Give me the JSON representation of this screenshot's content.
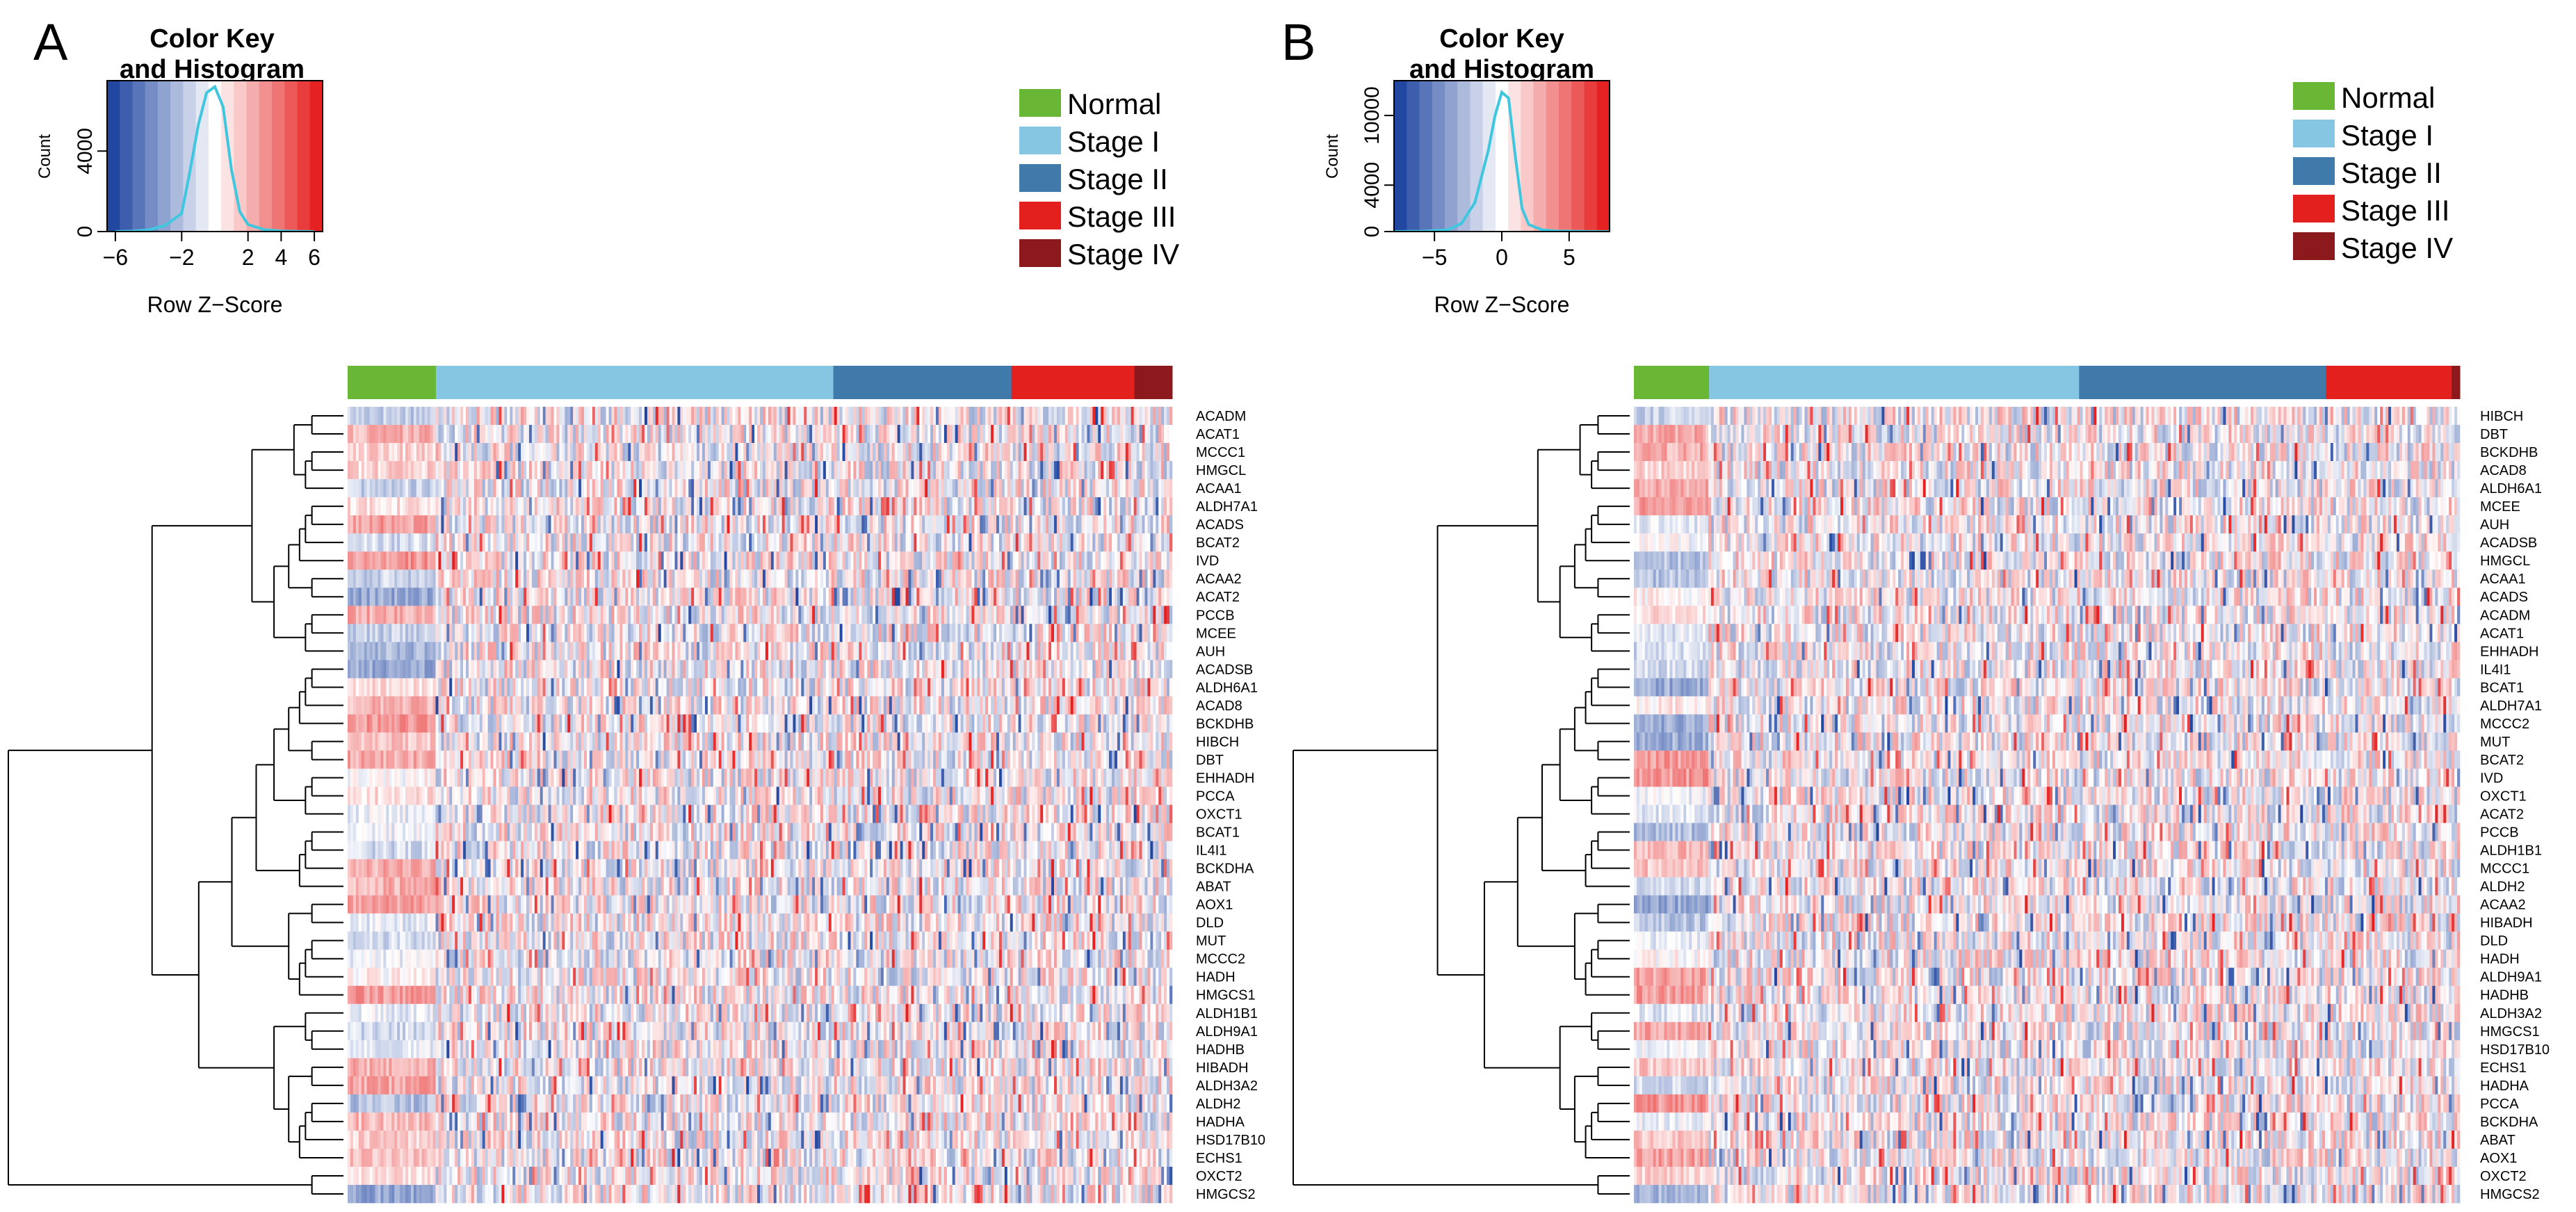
{
  "colors": {
    "normal": "#6ab635",
    "stage_i": "#86c6e2",
    "stage_ii": "#3f7aab",
    "stage_iii": "#e4201f",
    "stage_iv": "#8c1a1c",
    "low": "#1f45a0",
    "mid": "#ffffff",
    "high": "#e51f1f",
    "histogram": "#3fc7e0"
  },
  "legend": [
    {
      "label": "Normal",
      "color_key": "normal"
    },
    {
      "label": "Stage I",
      "color_key": "stage_i"
    },
    {
      "label": "Stage II",
      "color_key": "stage_ii"
    },
    {
      "label": "Stage III",
      "color_key": "stage_iii"
    },
    {
      "label": "Stage IV",
      "color_key": "stage_iv"
    }
  ],
  "chart_data": [
    {
      "type": "heatmap",
      "panel_label": "A",
      "color_key": {
        "title_line1": "Color Key",
        "title_line2": "and Histogram",
        "xlabel": "Row Z−Score",
        "ylabel": "Count",
        "xlim": [
          -6.5,
          6.5
        ],
        "x_ticks": [
          "−6",
          "−2",
          "2",
          "4",
          "6"
        ],
        "x_tick_values": [
          -6,
          -2,
          2,
          4,
          6
        ],
        "y_ticks": [
          "0",
          "4000"
        ],
        "y_tick_values": [
          0,
          4000
        ],
        "ylim": [
          0,
          7500
        ],
        "histogram": {
          "x": [
            -6,
            -5,
            -4,
            -3,
            -2,
            -1.5,
            -1,
            -0.5,
            0,
            0.5,
            1,
            1.5,
            2,
            3,
            4,
            5,
            6
          ],
          "counts": [
            0,
            20,
            80,
            300,
            900,
            3000,
            5300,
            6900,
            7200,
            6200,
            3100,
            1000,
            350,
            90,
            30,
            10,
            0
          ]
        }
      },
      "group_fractions": [
        {
          "group": "normal",
          "fraction": 0.107
        },
        {
          "group": "stage_i",
          "fraction": 0.482
        },
        {
          "group": "stage_ii",
          "fraction": 0.216
        },
        {
          "group": "stage_iii",
          "fraction": 0.149
        },
        {
          "group": "stage_iv",
          "fraction": 0.046
        }
      ],
      "rows": [
        "ACADM",
        "ACAT1",
        "MCCC1",
        "HMGCL",
        "ACAA1",
        "ALDH7A1",
        "ACADS",
        "BCAT2",
        "IVD",
        "ACAA2",
        "ACAT2",
        "PCCB",
        "MCEE",
        "AUH",
        "ACADSB",
        "ALDH6A1",
        "ACAD8",
        "BCKDHB",
        "HIBCH",
        "DBT",
        "EHHADH",
        "PCCA",
        "OXCT1",
        "BCAT1",
        "IL4I1",
        "BCKDHA",
        "ABAT",
        "AOX1",
        "DLD",
        "MUT",
        "MCCC2",
        "HADH",
        "HMGCS1",
        "ALDH1B1",
        "ALDH9A1",
        "HADHB",
        "HIBADH",
        "ALDH3A2",
        "ALDH2",
        "HADHA",
        "HSD17B10",
        "ECHS1",
        "OXCT2",
        "HMGCS2"
      ]
    },
    {
      "type": "heatmap",
      "panel_label": "B",
      "color_key": {
        "title_line1": "Color Key",
        "title_line2": "and Histogram",
        "xlabel": "Row Z−Score",
        "ylabel": "Count",
        "xlim": [
          -8,
          8
        ],
        "x_ticks": [
          "−5",
          "0",
          "5"
        ],
        "x_tick_values": [
          -5,
          0,
          5
        ],
        "y_ticks": [
          "0",
          "4000",
          "10000"
        ],
        "y_tick_values": [
          0,
          4000,
          10000
        ],
        "ylim": [
          0,
          13000
        ],
        "histogram": {
          "x": [
            -8,
            -6,
            -4,
            -3,
            -2,
            -1,
            -0.5,
            0,
            0.5,
            1,
            1.5,
            2,
            3,
            4,
            6,
            8
          ],
          "counts": [
            0,
            20,
            150,
            700,
            2500,
            7000,
            10000,
            12000,
            11500,
            6500,
            2000,
            600,
            150,
            40,
            10,
            0
          ]
        }
      },
      "group_fractions": [
        {
          "group": "normal",
          "fraction": 0.091
        },
        {
          "group": "stage_i",
          "fraction": 0.448
        },
        {
          "group": "stage_ii",
          "fraction": 0.299
        },
        {
          "group": "stage_iii",
          "fraction": 0.152
        },
        {
          "group": "stage_iv",
          "fraction": 0.01
        }
      ],
      "rows": [
        "HIBCH",
        "DBT",
        "BCKDHB",
        "ACAD8",
        "ALDH6A1",
        "MCEE",
        "AUH",
        "ACADSB",
        "HMGCL",
        "ACAA1",
        "ACADS",
        "ACADM",
        "ACAT1",
        "EHHADH",
        "IL4I1",
        "BCAT1",
        "ALDH7A1",
        "MCCC2",
        "MUT",
        "BCAT2",
        "IVD",
        "OXCT1",
        "ACAT2",
        "PCCB",
        "ALDH1B1",
        "MCCC1",
        "ALDH2",
        "ACAA2",
        "HIBADH",
        "DLD",
        "HADH",
        "ALDH9A1",
        "HADHB",
        "ALDH3A2",
        "HMGCS1",
        "HSD17B10",
        "ECHS1",
        "HADHA",
        "PCCA",
        "BCKDHA",
        "ABAT",
        "AOX1",
        "OXCT2",
        "HMGCS2"
      ]
    }
  ]
}
